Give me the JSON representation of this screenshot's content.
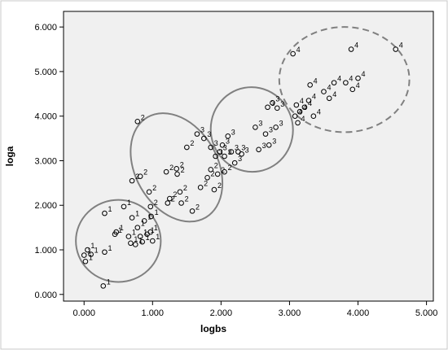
{
  "chart_data": {
    "type": "scatter",
    "title": "",
    "xlabel": "logbs",
    "ylabel": "loga",
    "xlim": [
      -0.3,
      5.1
    ],
    "ylim": [
      -0.15,
      6.35
    ],
    "x_ticks": [
      0,
      1,
      2,
      3,
      4,
      5
    ],
    "x_tick_labels": [
      "0.000",
      "1.000",
      "2.000",
      "3.000",
      "4.000",
      "5.000"
    ],
    "y_ticks": [
      0,
      1,
      2,
      3,
      4,
      5,
      6
    ],
    "y_tick_labels": [
      "0.000",
      "1.000",
      "2.000",
      "3.000",
      "4.000",
      "5.000",
      "6.000"
    ],
    "grid": false,
    "plot_background": "#f0f0f0",
    "marker_color": "#000000",
    "ellipse_color": "#808080",
    "points": [
      {
        "x": 0.0,
        "y": 0.88,
        "label": "1"
      },
      {
        "x": 0.02,
        "y": 0.74,
        "label": "1"
      },
      {
        "x": 0.05,
        "y": 1.0,
        "label": "1"
      },
      {
        "x": 0.1,
        "y": 0.9,
        "label": "1"
      },
      {
        "x": 0.28,
        "y": 0.19,
        "label": "1"
      },
      {
        "x": 0.3,
        "y": 0.95,
        "label": "1"
      },
      {
        "x": 0.3,
        "y": 1.82,
        "label": "1"
      },
      {
        "x": 0.45,
        "y": 1.35,
        "label": "1"
      },
      {
        "x": 0.47,
        "y": 1.4,
        "label": "1"
      },
      {
        "x": 0.58,
        "y": 1.97,
        "label": "1"
      },
      {
        "x": 0.65,
        "y": 1.3,
        "label": "1"
      },
      {
        "x": 0.68,
        "y": 1.15,
        "label": "1"
      },
      {
        "x": 0.7,
        "y": 1.72,
        "label": "1"
      },
      {
        "x": 0.75,
        "y": 1.12,
        "label": "1"
      },
      {
        "x": 0.78,
        "y": 1.5,
        "label": "1"
      },
      {
        "x": 0.82,
        "y": 1.3,
        "label": "1"
      },
      {
        "x": 0.85,
        "y": 1.18,
        "label": "1"
      },
      {
        "x": 0.88,
        "y": 1.65,
        "label": "1"
      },
      {
        "x": 0.92,
        "y": 1.35,
        "label": "1"
      },
      {
        "x": 0.97,
        "y": 1.4,
        "label": "1"
      },
      {
        "x": 0.98,
        "y": 1.75,
        "label": "1"
      },
      {
        "x": 1.0,
        "y": 1.2,
        "label": "1"
      },
      {
        "x": 0.7,
        "y": 2.55,
        "label": "2"
      },
      {
        "x": 0.78,
        "y": 3.88,
        "label": "2"
      },
      {
        "x": 0.82,
        "y": 2.65,
        "label": "2"
      },
      {
        "x": 0.95,
        "y": 2.3,
        "label": "2"
      },
      {
        "x": 0.97,
        "y": 1.97,
        "label": "2"
      },
      {
        "x": 1.2,
        "y": 2.75,
        "label": "2"
      },
      {
        "x": 1.22,
        "y": 2.05,
        "label": "2"
      },
      {
        "x": 1.25,
        "y": 2.15,
        "label": "2"
      },
      {
        "x": 1.35,
        "y": 2.82,
        "label": "2"
      },
      {
        "x": 1.36,
        "y": 2.7,
        "label": "2"
      },
      {
        "x": 1.4,
        "y": 2.3,
        "label": "2"
      },
      {
        "x": 1.42,
        "y": 2.05,
        "label": "2"
      },
      {
        "x": 1.5,
        "y": 3.3,
        "label": "2"
      },
      {
        "x": 1.58,
        "y": 1.87,
        "label": "2"
      },
      {
        "x": 1.7,
        "y": 2.4,
        "label": "2"
      },
      {
        "x": 1.8,
        "y": 2.62,
        "label": "2"
      },
      {
        "x": 1.85,
        "y": 2.8,
        "label": "2"
      },
      {
        "x": 1.9,
        "y": 2.35,
        "label": "2"
      },
      {
        "x": 1.95,
        "y": 2.7,
        "label": "2"
      },
      {
        "x": 2.05,
        "y": 2.75,
        "label": "2"
      },
      {
        "x": 1.65,
        "y": 3.6,
        "label": "3"
      },
      {
        "x": 1.75,
        "y": 3.5,
        "label": "3"
      },
      {
        "x": 1.85,
        "y": 3.3,
        "label": "3"
      },
      {
        "x": 1.92,
        "y": 3.1,
        "label": "3"
      },
      {
        "x": 1.98,
        "y": 3.2,
        "label": "3"
      },
      {
        "x": 2.02,
        "y": 3.35,
        "label": "3"
      },
      {
        "x": 2.05,
        "y": 3.1,
        "label": "3"
      },
      {
        "x": 2.1,
        "y": 3.55,
        "label": "3"
      },
      {
        "x": 2.15,
        "y": 3.2,
        "label": "3"
      },
      {
        "x": 2.2,
        "y": 2.95,
        "label": "3"
      },
      {
        "x": 2.25,
        "y": 3.2,
        "label": "3"
      },
      {
        "x": 2.3,
        "y": 3.15,
        "label": "3"
      },
      {
        "x": 2.5,
        "y": 3.75,
        "label": "3"
      },
      {
        "x": 2.55,
        "y": 3.25,
        "label": "3"
      },
      {
        "x": 2.65,
        "y": 3.6,
        "label": "3"
      },
      {
        "x": 2.68,
        "y": 4.2,
        "label": "3"
      },
      {
        "x": 2.7,
        "y": 3.35,
        "label": "3"
      },
      {
        "x": 2.75,
        "y": 4.3,
        "label": "3"
      },
      {
        "x": 2.8,
        "y": 3.75,
        "label": "3"
      },
      {
        "x": 2.82,
        "y": 4.18,
        "label": "3"
      },
      {
        "x": 3.05,
        "y": 5.4,
        "label": "4"
      },
      {
        "x": 3.08,
        "y": 4.0,
        "label": "4"
      },
      {
        "x": 3.1,
        "y": 4.25,
        "label": "4"
      },
      {
        "x": 3.12,
        "y": 3.85,
        "label": "4"
      },
      {
        "x": 3.15,
        "y": 4.1,
        "label": "4"
      },
      {
        "x": 3.22,
        "y": 4.2,
        "label": "4"
      },
      {
        "x": 3.28,
        "y": 4.35,
        "label": "4"
      },
      {
        "x": 3.3,
        "y": 4.7,
        "label": "4"
      },
      {
        "x": 3.35,
        "y": 4.0,
        "label": "4"
      },
      {
        "x": 3.5,
        "y": 4.55,
        "label": "4"
      },
      {
        "x": 3.58,
        "y": 4.4,
        "label": "4"
      },
      {
        "x": 3.65,
        "y": 4.75,
        "label": "4"
      },
      {
        "x": 3.82,
        "y": 4.75,
        "label": "4"
      },
      {
        "x": 3.9,
        "y": 5.5,
        "label": "4"
      },
      {
        "x": 3.92,
        "y": 4.6,
        "label": "4"
      },
      {
        "x": 4.0,
        "y": 4.85,
        "label": "4"
      },
      {
        "x": 4.55,
        "y": 5.5,
        "label": "4"
      }
    ],
    "ellipses": [
      {
        "cx": 0.5,
        "cy": 1.2,
        "rx": 0.62,
        "ry": 0.92,
        "angle": 0,
        "dashed": false
      },
      {
        "cx": 1.35,
        "cy": 2.85,
        "rx": 0.6,
        "ry": 1.3,
        "angle": -30,
        "dashed": false
      },
      {
        "cx": 2.45,
        "cy": 3.7,
        "rx": 0.6,
        "ry": 0.95,
        "angle": -10,
        "dashed": false
      },
      {
        "cx": 3.8,
        "cy": 4.82,
        "rx": 0.95,
        "ry": 1.18,
        "angle": 0,
        "dashed": true
      }
    ]
  }
}
